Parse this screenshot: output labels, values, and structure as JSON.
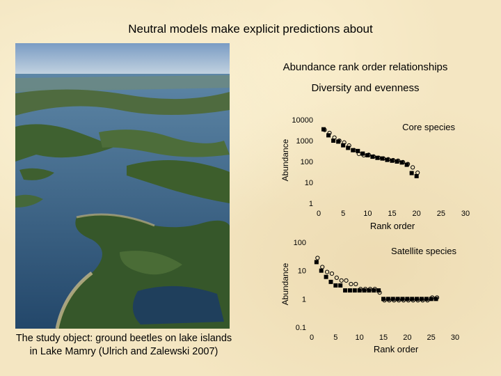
{
  "slide": {
    "title": "Neutral models make explicit predictions about",
    "subtitle1": "Abundance rank order relationships",
    "subtitle2": "Diversity and evenness",
    "caption_line1": "The study object: ground beetles on lake islands",
    "caption_line2": "in Lake Mamry (Ulrich and Zalewski 2007)"
  },
  "photo": {
    "description_icon": "aerial-lake-islands-photo"
  },
  "chart_data": [
    {
      "type": "scatter",
      "title": "Core species",
      "xlabel": "Rank order",
      "ylabel": "Abundance",
      "yscale": "log",
      "xlim": [
        0,
        30
      ],
      "ylim": [
        1,
        10000
      ],
      "xticks": [
        0,
        5,
        10,
        15,
        20,
        25,
        30
      ],
      "yticks": [
        1,
        10,
        100,
        1000,
        10000
      ],
      "series": [
        {
          "marker": "filled-square",
          "x": [
            1,
            2,
            3,
            4,
            5,
            6,
            7,
            8,
            9,
            10,
            11,
            12,
            13,
            14,
            15,
            16,
            17,
            18,
            19,
            20
          ],
          "y": [
            3500,
            1800,
            1000,
            900,
            600,
            450,
            350,
            320,
            240,
            200,
            170,
            150,
            140,
            120,
            110,
            100,
            90,
            70,
            28,
            20
          ]
        },
        {
          "marker": "open-circle",
          "x": [
            1,
            2,
            3,
            4,
            5,
            6,
            7,
            8,
            9,
            10,
            11,
            12,
            13,
            14,
            15,
            16,
            17,
            18,
            19,
            20
          ],
          "y": [
            2800,
            2000,
            1200,
            850,
            700,
            500,
            300,
            200,
            170,
            180,
            150,
            130,
            120,
            110,
            100,
            95,
            80,
            65,
            45,
            25
          ]
        }
      ]
    },
    {
      "type": "scatter",
      "title": "Satellite species",
      "xlabel": "Rank order",
      "ylabel": "Abundance",
      "yscale": "log",
      "xlim": [
        0,
        30
      ],
      "ylim": [
        0.1,
        100
      ],
      "xticks": [
        0,
        5,
        10,
        15,
        20,
        25,
        30
      ],
      "yticks": [
        0.1,
        1,
        10,
        100
      ],
      "series": [
        {
          "marker": "filled-square",
          "x": [
            1,
            2,
            3,
            4,
            5,
            6,
            7,
            8,
            9,
            10,
            11,
            12,
            13,
            14,
            15,
            16,
            17,
            18,
            19,
            20,
            21,
            22,
            23,
            24,
            25,
            26
          ],
          "y": [
            20,
            10,
            6,
            4,
            3,
            3,
            2,
            2,
            2,
            2,
            2,
            2,
            2,
            2,
            1,
            1,
            1,
            1,
            1,
            1,
            1,
            1,
            1,
            1,
            1,
            1
          ]
        },
        {
          "marker": "open-circle",
          "x": [
            1,
            2,
            3,
            4,
            5,
            6,
            7,
            8,
            9,
            10,
            11,
            12,
            13,
            14,
            15,
            16,
            17,
            18,
            19,
            20,
            21,
            22,
            23,
            24,
            25,
            26
          ],
          "y": [
            25,
            12,
            8,
            7,
            5,
            4,
            4,
            3,
            3,
            2,
            2,
            2,
            2,
            1.5,
            0.8,
            0.8,
            0.8,
            0.8,
            0.8,
            0.8,
            0.8,
            0.8,
            0.8,
            0.8,
            1,
            1
          ]
        }
      ]
    }
  ]
}
